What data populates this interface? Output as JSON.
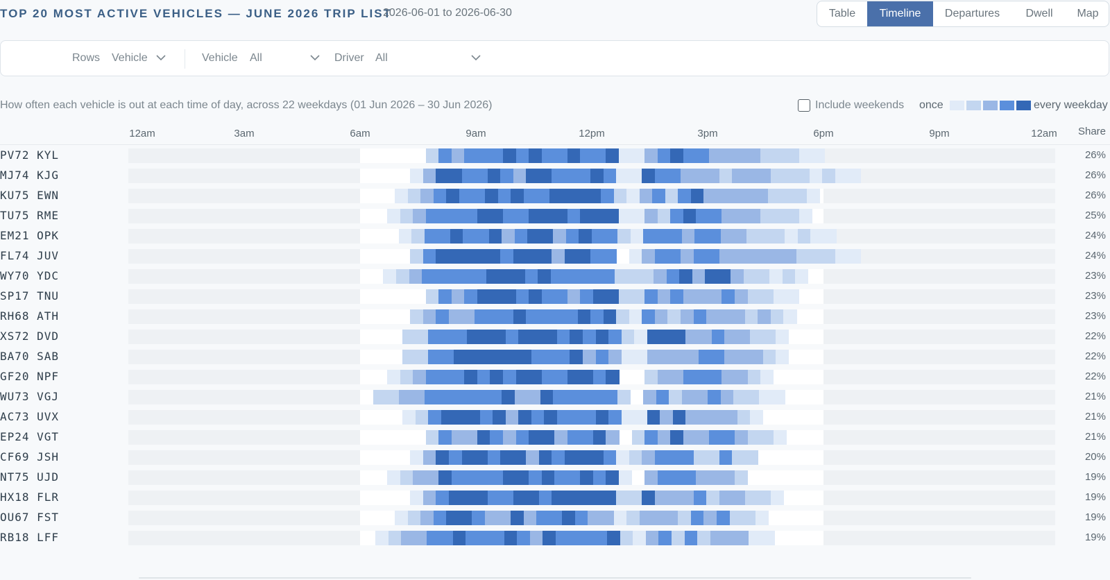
{
  "header": {
    "title": "TOP 20 MOST ACTIVE VEHICLES — JUNE 2026 TRIP LIST",
    "date_range": "2026-06-01 to 2026-06-30"
  },
  "views": [
    {
      "label": "Table",
      "active": false
    },
    {
      "label": "Timeline",
      "active": true
    },
    {
      "label": "Departures",
      "active": false
    },
    {
      "label": "Dwell",
      "active": false
    },
    {
      "label": "Map",
      "active": false
    }
  ],
  "filters": {
    "rows_label": "Rows",
    "rows_value": "Vehicle",
    "vehicle_label": "Vehicle",
    "vehicle_value": "All",
    "driver_label": "Driver",
    "driver_value": "All"
  },
  "subtitle": "How often each vehicle is out at each time of day, across 22 weekdays (01 Jun 2026 – 30 Jun 2026)",
  "weekends": {
    "label": "Include weekends",
    "checked": false
  },
  "legend": {
    "low_label": "once",
    "high_label": "every weekday",
    "colors": [
      "#e1ebf8",
      "#c3d6f0",
      "#9ab7e5",
      "#5b8fdc",
      "#3468b6"
    ]
  },
  "chart_data": {
    "type": "heatmap",
    "x_ticks": [
      "12am",
      "3am",
      "6am",
      "9am",
      "12pm",
      "3pm",
      "6pm",
      "9pm",
      "12am"
    ],
    "x_range_hours": [
      0,
      24
    ],
    "highlight_hours": [
      6,
      18
    ],
    "slot_minutes": 20,
    "value_scale": "fraction of 22 weekdays the vehicle is out (0 = never, 1 = every weekday)",
    "share_label": "Share",
    "rows": [
      {
        "vehicle": "PV72 KYL",
        "share": "26%",
        "peak": 0.96,
        "start": 7.7,
        "end": 17.8
      },
      {
        "vehicle": "MJ74 KJG",
        "share": "26%",
        "peak": 0.92,
        "start": 7.3,
        "end": 18.8
      },
      {
        "vehicle": "KU75 EWN",
        "share": "26%",
        "peak": 1.0,
        "start": 6.9,
        "end": 17.7
      },
      {
        "vehicle": "TU75 RME",
        "share": "25%",
        "peak": 0.96,
        "start": 6.7,
        "end": 17.7
      },
      {
        "vehicle": "EM21 OPK",
        "share": "24%",
        "peak": 0.94,
        "start": 7.0,
        "end": 18.2
      },
      {
        "vehicle": "FL74 JUV",
        "share": "24%",
        "peak": 1.0,
        "start": 7.3,
        "end": 18.8
      },
      {
        "vehicle": "WY70 YDC",
        "share": "23%",
        "peak": 0.95,
        "start": 6.6,
        "end": 17.3
      },
      {
        "vehicle": "SP17 TNU",
        "share": "23%",
        "peak": 0.96,
        "start": 7.7,
        "end": 17.3
      },
      {
        "vehicle": "RH68 ATH",
        "share": "23%",
        "peak": 0.93,
        "start": 7.3,
        "end": 17.1
      },
      {
        "vehicle": "XS72 DVD",
        "share": "22%",
        "peak": 0.98,
        "start": 7.1,
        "end": 16.9
      },
      {
        "vehicle": "BA70 SAB",
        "share": "22%",
        "peak": 0.96,
        "start": 7.1,
        "end": 16.9
      },
      {
        "vehicle": "GF20 NPF",
        "share": "22%",
        "peak": 0.95,
        "start": 6.7,
        "end": 16.7
      },
      {
        "vehicle": "WU73 VGJ",
        "share": "21%",
        "peak": 0.88,
        "start": 6.0,
        "end": 16.9
      },
      {
        "vehicle": "AC73 UVX",
        "share": "21%",
        "peak": 0.96,
        "start": 7.1,
        "end": 16.3
      },
      {
        "vehicle": "EP24 VGT",
        "share": "21%",
        "peak": 0.97,
        "start": 7.7,
        "end": 16.9
      },
      {
        "vehicle": "CF69 JSH",
        "share": "20%",
        "peak": 0.96,
        "start": 7.3,
        "end": 16.3
      },
      {
        "vehicle": "NT75 UJD",
        "share": "19%",
        "peak": 0.93,
        "start": 6.7,
        "end": 16.1
      },
      {
        "vehicle": "HX18 FLR",
        "share": "19%",
        "peak": 0.97,
        "start": 7.3,
        "end": 16.7
      },
      {
        "vehicle": "OU67 FST",
        "share": "19%",
        "peak": 0.92,
        "start": 6.9,
        "end": 16.3
      },
      {
        "vehicle": "RB18 LFF",
        "share": "19%",
        "peak": 0.93,
        "start": 6.4,
        "end": 16.5
      }
    ]
  }
}
